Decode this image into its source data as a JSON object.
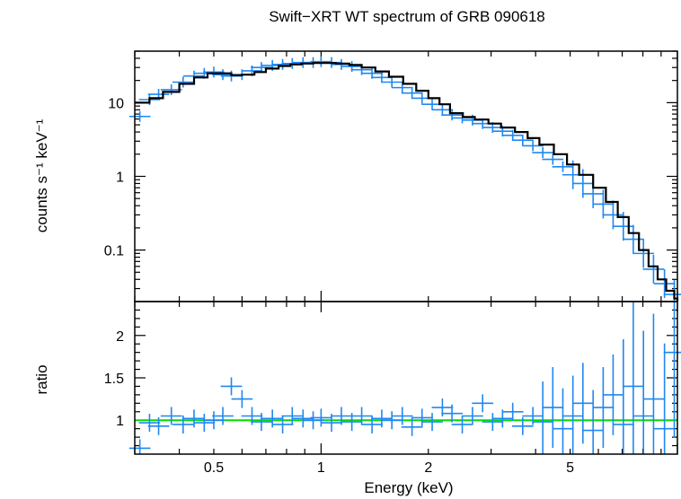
{
  "chart_data": [
    {
      "type": "scatter",
      "panel": "spectrum",
      "title": "Swift−XRT WT spectrum of GRB 090618",
      "ylabel": "counts s⁻¹ keV⁻¹",
      "xscale": "log",
      "yscale": "log",
      "xlim": [
        0.3,
        10
      ],
      "ylim": [
        0.02,
        50
      ],
      "x_tick_labels": [
        "0.5",
        "1",
        "2",
        "5"
      ],
      "y_tick_labels": [
        "0.1",
        "1",
        "10"
      ],
      "series": [
        {
          "role": "data",
          "color": "#1f88f0",
          "x": [
            0.31,
            0.33,
            0.35,
            0.38,
            0.41,
            0.44,
            0.47,
            0.5,
            0.53,
            0.56,
            0.6,
            0.64,
            0.68,
            0.73,
            0.78,
            0.83,
            0.89,
            0.95,
            1.0,
            1.07,
            1.14,
            1.22,
            1.3,
            1.39,
            1.48,
            1.58,
            1.69,
            1.8,
            1.92,
            2.05,
            2.19,
            2.33,
            2.49,
            2.66,
            2.84,
            3.03,
            3.23,
            3.45,
            3.68,
            3.93,
            4.19,
            4.47,
            4.77,
            5.09,
            5.43,
            5.8,
            6.19,
            6.6,
            7.05,
            7.52,
            8.03,
            8.57,
            9.2,
            9.8
          ],
          "y": [
            6.5,
            11,
            13,
            15,
            19,
            23,
            25,
            26,
            24,
            23,
            24,
            27,
            30,
            32,
            33,
            34,
            35,
            35,
            36,
            35,
            33,
            31,
            28,
            25,
            22,
            19,
            16,
            13.5,
            11.5,
            9.5,
            8,
            6.8,
            6.2,
            5.8,
            5.2,
            4.6,
            4.1,
            3.6,
            3.1,
            2.6,
            2.1,
            1.7,
            1.35,
            1.05,
            0.8,
            0.58,
            0.42,
            0.3,
            0.21,
            0.14,
            0.09,
            0.055,
            0.035,
            0.025
          ]
        },
        {
          "role": "model",
          "color": "#000000",
          "x": [
            0.3,
            0.33,
            0.36,
            0.4,
            0.44,
            0.48,
            0.52,
            0.56,
            0.6,
            0.65,
            0.7,
            0.76,
            0.82,
            0.88,
            0.95,
            1.02,
            1.1,
            1.2,
            1.3,
            1.42,
            1.55,
            1.7,
            1.85,
            2.0,
            2.15,
            2.3,
            2.5,
            2.7,
            2.95,
            3.2,
            3.5,
            3.8,
            4.1,
            4.5,
            4.9,
            5.3,
            5.8,
            6.3,
            6.8,
            7.3,
            7.8,
            8.3,
            8.8,
            9.3,
            9.8,
            10.0
          ],
          "y": [
            10,
            11.5,
            14,
            18,
            22,
            25,
            25,
            23.5,
            24,
            26,
            29,
            31.5,
            33,
            34,
            34.5,
            34.5,
            34,
            32.5,
            30,
            26.5,
            22.5,
            18,
            14.5,
            11.5,
            9.5,
            7.2,
            6.4,
            5.9,
            5.2,
            4.6,
            4.0,
            3.3,
            2.7,
            2.0,
            1.45,
            1.05,
            0.7,
            0.45,
            0.28,
            0.17,
            0.1,
            0.06,
            0.04,
            0.028,
            0.022,
            0.02
          ]
        }
      ]
    },
    {
      "type": "scatter",
      "panel": "ratio",
      "xlabel": "Energy (keV)",
      "ylabel": "ratio",
      "xscale": "log",
      "xlim": [
        0.3,
        10
      ],
      "ylim": [
        0.6,
        2.4
      ],
      "x_tick_labels": [
        "0.5",
        "1",
        "2",
        "5"
      ],
      "y_tick_labels": [
        "1",
        "1.5",
        "2"
      ],
      "reference_line": {
        "y": 1.0,
        "color": "#00dd00"
      },
      "series": [
        {
          "role": "data",
          "color": "#1f88f0",
          "x": [
            0.31,
            0.33,
            0.35,
            0.38,
            0.41,
            0.44,
            0.47,
            0.5,
            0.53,
            0.56,
            0.6,
            0.64,
            0.68,
            0.73,
            0.78,
            0.83,
            0.89,
            0.95,
            1.0,
            1.07,
            1.14,
            1.22,
            1.3,
            1.39,
            1.48,
            1.58,
            1.69,
            1.8,
            1.92,
            2.05,
            2.19,
            2.33,
            2.49,
            2.66,
            2.84,
            3.03,
            3.23,
            3.45,
            3.68,
            3.93,
            4.19,
            4.47,
            4.77,
            5.09,
            5.43,
            5.8,
            6.19,
            6.6,
            7.05,
            7.52,
            8.03,
            8.57,
            9.2,
            9.8
          ],
          "y": [
            0.67,
            0.97,
            0.93,
            1.05,
            0.95,
            1.02,
            0.97,
            1.0,
            1.05,
            1.4,
            1.25,
            1.05,
            0.98,
            1.02,
            0.95,
            1.05,
            1.02,
            1.0,
            1.03,
            0.97,
            1.05,
            0.98,
            1.05,
            0.95,
            1.02,
            1.0,
            1.05,
            0.92,
            1.03,
            0.98,
            1.15,
            1.08,
            0.95,
            1.05,
            1.2,
            0.98,
            1.02,
            1.1,
            0.93,
            1.05,
            0.98,
            1.15,
            0.9,
            1.05,
            1.2,
            0.88,
            1.15,
            1.3,
            0.95,
            1.4,
            1.05,
            1.25,
            0.9,
            1.8
          ]
        }
      ]
    }
  ]
}
